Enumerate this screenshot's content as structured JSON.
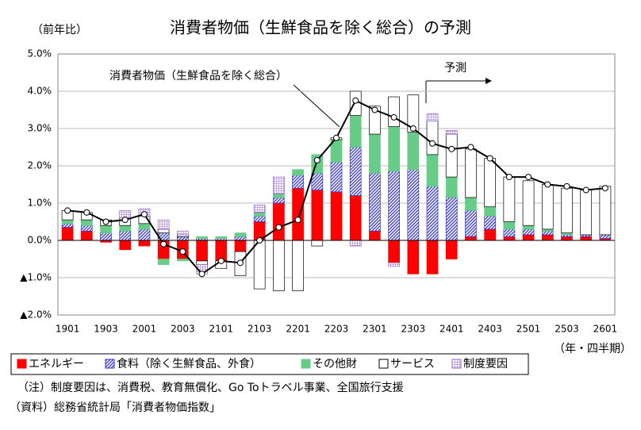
{
  "chart_data": {
    "type": "bar",
    "title": "消費者物価（生鮮食品を除く総合）の予測",
    "y_label": "（前年比）",
    "x_label": "（年・四半期）",
    "forecast_label": "予測",
    "notes": [
      "（注）制度要因は、消費税、教育無償化、Go Toトラベル事業、全国旅行支援",
      "（資料）総務省統計局「消費者物価指数」"
    ],
    "stacked": true,
    "grid": true,
    "legend": "bottom",
    "categories": [
      "1901",
      null,
      "1903",
      null,
      "2001",
      null,
      "2003",
      null,
      "2101",
      null,
      "2103",
      null,
      "2201",
      null,
      "2203",
      null,
      "2301",
      null,
      "2303",
      null,
      "2401",
      null,
      "2403",
      null,
      "2501",
      null,
      "2503",
      null,
      "2601"
    ],
    "ylim": [
      -2,
      5
    ],
    "yticks": [
      {
        "value": 5,
        "label": "5.0%"
      },
      {
        "value": 4,
        "label": "4.0%"
      },
      {
        "value": 3,
        "label": "3.0%"
      },
      {
        "value": 2,
        "label": "2.0%"
      },
      {
        "value": 1,
        "label": "1.0%"
      },
      {
        "value": 0,
        "label": "0.0%"
      },
      {
        "value": -1,
        "label": "▲1.0%"
      },
      {
        "value": -2,
        "label": "▲2.0%"
      }
    ],
    "series": [
      {
        "name": "エネルギー",
        "color": "#ff0000",
        "fill_style": "solid",
        "values": [
          0.35,
          0.25,
          -0.05,
          -0.25,
          -0.15,
          -0.5,
          -0.5,
          -0.55,
          -0.55,
          -0.3,
          0.5,
          1.0,
          1.4,
          1.35,
          1.3,
          1.2,
          0.25,
          -0.6,
          -0.9,
          -0.9,
          -0.5,
          0.1,
          0.3,
          0.1,
          0.15,
          0.15,
          0.1,
          0.1,
          0.05
        ]
      },
      {
        "name": "食料（除く生鮮食品、外食）",
        "color": "#3333cc",
        "fill_style": "hatch",
        "values": [
          0.1,
          0.15,
          0.2,
          0.25,
          0.3,
          0.2,
          0.1,
          0.05,
          0.05,
          0.1,
          0.15,
          0.15,
          0.35,
          0.45,
          0.8,
          1.3,
          1.55,
          1.85,
          1.9,
          1.45,
          1.15,
          0.7,
          0.35,
          0.2,
          0.15,
          0.1,
          0.05,
          0.05,
          0.1
        ]
      },
      {
        "name": "その他財",
        "color": "#66cc88",
        "fill_style": "solid",
        "values": [
          0.1,
          0.15,
          0.2,
          0.15,
          0.15,
          -0.15,
          -0.05,
          0.05,
          0.05,
          0.1,
          0.1,
          0.1,
          0.15,
          0.5,
          0.6,
          0.85,
          1.05,
          1.2,
          1.0,
          0.85,
          0.55,
          0.35,
          0.25,
          0.2,
          0.1,
          0.05,
          0.05,
          0,
          0
        ]
      },
      {
        "name": "サービス",
        "color": "#ffffff",
        "fill_style": "solid",
        "values": [
          0.25,
          0.2,
          0.15,
          0.2,
          0.2,
          0.1,
          0.05,
          -0.1,
          -0.2,
          -0.65,
          -1.3,
          -1.35,
          -1.35,
          -0.15,
          0.05,
          0.65,
          0.75,
          0.8,
          1.0,
          0.9,
          1.15,
          1.3,
          1.3,
          1.2,
          1.2,
          1.2,
          1.2,
          1.2,
          1.3
        ]
      },
      {
        "name": "制度要因",
        "color": "#9966cc",
        "fill_style": "grid",
        "values": [
          0,
          0,
          0,
          0.2,
          0.2,
          0.25,
          0.1,
          -0.25,
          0,
          0,
          0.2,
          0.45,
          0,
          0,
          0,
          -0.15,
          0,
          -0.1,
          0,
          0.2,
          0.1,
          0,
          0,
          0,
          0,
          0,
          0,
          0,
          0
        ]
      }
    ],
    "line": {
      "name": "消費者物価（生鮮食品を除く総合）",
      "color": "#000000",
      "values": [
        0.8,
        0.75,
        0.5,
        0.55,
        0.7,
        -0.1,
        -0.3,
        -0.9,
        -0.55,
        -0.6,
        0.0,
        0.35,
        0.55,
        2.15,
        2.75,
        3.75,
        3.5,
        3.3,
        3.0,
        2.6,
        2.45,
        2.5,
        2.2,
        1.7,
        1.7,
        1.5,
        1.45,
        1.35,
        1.4
      ]
    }
  }
}
